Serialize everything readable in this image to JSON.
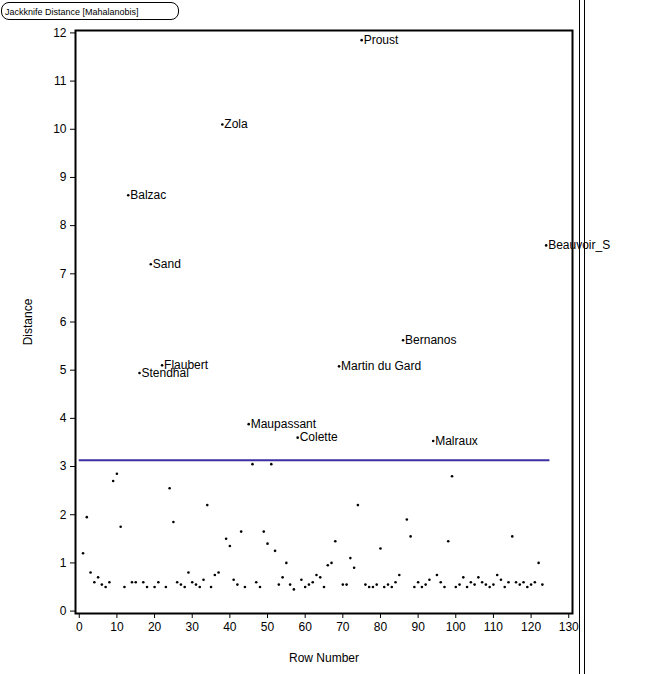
{
  "chart_data": {
    "type": "scatter",
    "title": "Jackknife Distance [Mahalanobis]",
    "x_label": "Row Number",
    "y_label": "Distance",
    "x": [
      1,
      2,
      3,
      4,
      5,
      6,
      7,
      8,
      9,
      10,
      11,
      12,
      13,
      14,
      15,
      16,
      17,
      18,
      19,
      20,
      21,
      22,
      23,
      24,
      25,
      26,
      27,
      28,
      29,
      30,
      31,
      32,
      33,
      34,
      35,
      36,
      37,
      38,
      39,
      40,
      41,
      42,
      43,
      44,
      45,
      46,
      47,
      48,
      49,
      50,
      51,
      52,
      53,
      54,
      55,
      56,
      57,
      58,
      59,
      60,
      61,
      62,
      63,
      64,
      65,
      66,
      67,
      68,
      69,
      70,
      71,
      72,
      73,
      74,
      75,
      76,
      77,
      78,
      79,
      80,
      81,
      82,
      83,
      84,
      85,
      86,
      87,
      88,
      89,
      90,
      91,
      92,
      93,
      94,
      95,
      96,
      97,
      98,
      99,
      100,
      101,
      102,
      103,
      104,
      105,
      106,
      107,
      108,
      109,
      110,
      111,
      112,
      113,
      114,
      115,
      116,
      117,
      118,
      119,
      120,
      121,
      122,
      123,
      124
    ],
    "values": [
      1.2,
      1.95,
      0.8,
      0.6,
      0.7,
      0.55,
      0.5,
      0.6,
      2.7,
      2.85,
      1.75,
      0.5,
      8.63,
      0.6,
      0.6,
      4.94,
      0.6,
      0.5,
      7.2,
      0.5,
      0.6,
      5.1,
      0.5,
      2.55,
      1.85,
      0.6,
      0.55,
      0.5,
      0.8,
      0.6,
      0.55,
      0.5,
      0.65,
      2.2,
      0.5,
      0.75,
      0.8,
      10.1,
      1.5,
      1.35,
      0.65,
      0.55,
      1.65,
      0.5,
      3.88,
      3.05,
      0.6,
      0.5,
      1.65,
      1.4,
      3.05,
      1.25,
      0.55,
      0.7,
      1.0,
      0.55,
      0.45,
      3.6,
      0.65,
      0.5,
      0.55,
      0.6,
      0.75,
      0.7,
      0.5,
      0.95,
      1.0,
      1.45,
      5.08,
      0.55,
      0.55,
      1.1,
      0.9,
      2.2,
      11.85,
      0.55,
      0.5,
      0.5,
      0.55,
      1.3,
      0.5,
      0.55,
      0.5,
      0.6,
      0.75,
      5.62,
      1.9,
      1.55,
      0.5,
      0.6,
      0.5,
      0.55,
      0.65,
      3.53,
      0.75,
      0.6,
      0.5,
      1.45,
      2.8,
      0.5,
      0.55,
      0.7,
      0.5,
      0.6,
      0.55,
      0.7,
      0.6,
      0.55,
      0.5,
      0.55,
      0.75,
      0.65,
      0.5,
      0.6,
      1.55,
      0.6,
      0.55,
      0.6,
      0.5,
      0.55,
      0.6,
      1.0,
      0.55,
      7.59
    ],
    "labels": [
      null,
      null,
      null,
      null,
      null,
      null,
      null,
      null,
      null,
      null,
      null,
      null,
      "Balzac",
      null,
      null,
      "Stendhal",
      null,
      null,
      "Sand",
      null,
      null,
      "Flaubert",
      null,
      null,
      null,
      null,
      null,
      null,
      null,
      null,
      null,
      null,
      null,
      null,
      null,
      null,
      null,
      "Zola",
      null,
      null,
      null,
      null,
      null,
      null,
      "Maupassant",
      null,
      null,
      null,
      null,
      null,
      null,
      null,
      null,
      null,
      null,
      null,
      null,
      "Colette",
      null,
      null,
      null,
      null,
      null,
      null,
      null,
      null,
      null,
      null,
      "Martin du Gard",
      null,
      null,
      null,
      null,
      null,
      "Proust",
      null,
      null,
      null,
      null,
      null,
      null,
      null,
      null,
      null,
      null,
      "Bernanos",
      null,
      null,
      null,
      null,
      null,
      null,
      null,
      "Malraux",
      null,
      null,
      null,
      null,
      null,
      null,
      null,
      null,
      null,
      null,
      null,
      null,
      null,
      null,
      null,
      null,
      null,
      null,
      null,
      null,
      null,
      null,
      null,
      null,
      null,
      null,
      null,
      null,
      null,
      "Beauvoir_S"
    ],
    "threshold": {
      "value": 3.13,
      "x": [
        0,
        125
      ],
      "color": "#3b2fa3"
    },
    "color": "#000000",
    "xlim": [
      -1,
      131
    ],
    "ylim": [
      -0.05,
      12.05
    ],
    "xticks": [
      0,
      10,
      20,
      30,
      40,
      50,
      60,
      70,
      80,
      90,
      100,
      110,
      120,
      130
    ],
    "yticks": [
      0,
      1,
      2,
      3,
      4,
      5,
      6,
      7,
      8,
      9,
      10,
      11,
      12
    ],
    "grid": false
  }
}
